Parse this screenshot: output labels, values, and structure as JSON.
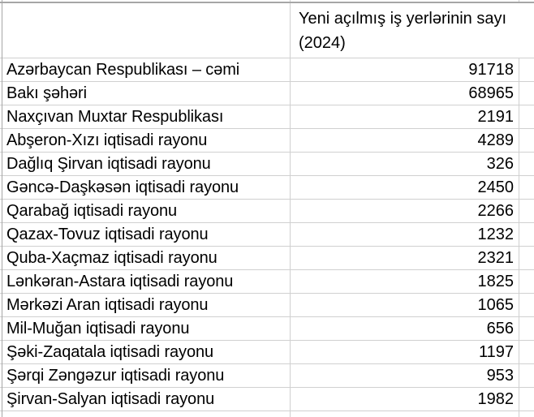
{
  "colors": {
    "gridline": "#d0d0d0",
    "border_dark": "#a6a6a6",
    "text": "#000000",
    "background": "#ffffff"
  },
  "table": {
    "header": {
      "region_label": "",
      "value_label": "Yeni açılmış iş yerlərinin sayı\n(2024)"
    },
    "rows": [
      {
        "region": "Azərbaycan Respublikası – cəmi",
        "value": 91718
      },
      {
        "region": "Bakı şəhəri",
        "value": 68965
      },
      {
        "region": "Naxçıvan Muxtar Respublikası",
        "value": 2191
      },
      {
        "region": "Abşeron-Xızı iqtisadi rayonu",
        "value": 4289
      },
      {
        "region": "Dağlıq Şirvan iqtisadi rayonu",
        "value": 326
      },
      {
        "region": "Gəncə-Daşkəsən iqtisadi rayonu",
        "value": 2450
      },
      {
        "region": "Qarabağ iqtisadi rayonu",
        "value": 2266
      },
      {
        "region": "Qazax-Tovuz iqtisadi rayonu",
        "value": 1232
      },
      {
        "region": "Quba-Xaçmaz iqtisadi rayonu",
        "value": 2321
      },
      {
        "region": "Lənkəran-Astara iqtisadi rayonu",
        "value": 1825
      },
      {
        "region": "Mərkəzi Aran iqtisadi rayonu",
        "value": 1065
      },
      {
        "region": "Mil-Muğan iqtisadi rayonu",
        "value": 656
      },
      {
        "region": "Şəki-Zaqatala iqtisadi rayonu",
        "value": 1197
      },
      {
        "region": "Şərqi Zəngəzur iqtisadi rayonu",
        "value": 953
      },
      {
        "region": "Şirvan-Salyan iqtisadi rayonu",
        "value": 1982
      }
    ]
  }
}
